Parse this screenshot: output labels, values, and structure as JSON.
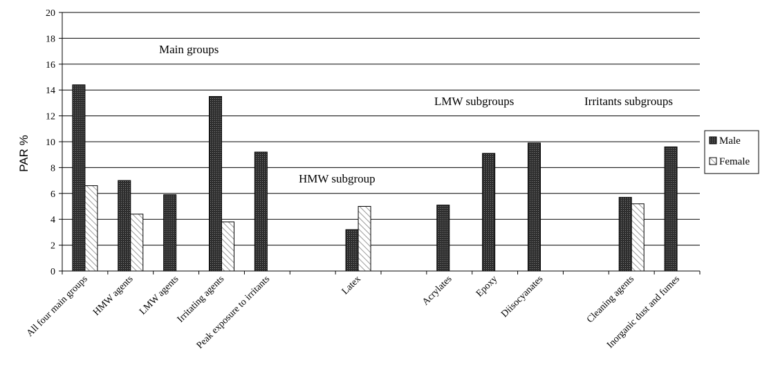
{
  "chart_data": {
    "type": "bar",
    "ylabel": "PAR %",
    "xlabel": "",
    "title": "",
    "ylim": [
      0,
      20
    ],
    "yticks": [
      0,
      2,
      4,
      6,
      8,
      10,
      12,
      14,
      16,
      18,
      20
    ],
    "grid": true,
    "legend": {
      "position": "right"
    },
    "categories": [
      "All four main groups",
      "HMW agents",
      "LMW agents",
      "Irritating agents",
      "Peak exposure to irritants",
      "",
      "Latex",
      "",
      "Acrylates",
      "Epoxy",
      "Diisocyanates",
      "",
      "Cleaning agents",
      "Inorganic dust and fumes"
    ],
    "series": [
      {
        "name": "Male",
        "values": [
          14.4,
          7.0,
          5.9,
          13.5,
          9.2,
          null,
          3.2,
          null,
          5.1,
          9.1,
          9.9,
          null,
          5.7,
          9.6
        ]
      },
      {
        "name": "Female",
        "values": [
          6.6,
          4.4,
          null,
          3.8,
          null,
          null,
          5.0,
          null,
          null,
          null,
          null,
          null,
          5.2,
          null
        ]
      }
    ],
    "annotations": [
      {
        "text": "Main groups"
      },
      {
        "text": "HMW subgroup"
      },
      {
        "text": "LMW subgroups"
      },
      {
        "text": "Irritants subgroups"
      }
    ],
    "colors": {
      "male": "#3a3a3a",
      "female": "#ffffff",
      "grid": "#000000"
    }
  }
}
